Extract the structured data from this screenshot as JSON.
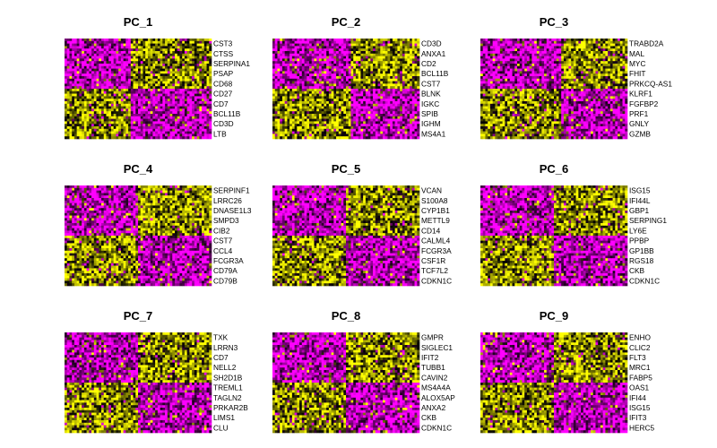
{
  "chart_data": {
    "type": "heatmap",
    "colors": {
      "low": "#ff00ff",
      "mid": "#000000",
      "high": "#ffff00"
    },
    "panels": [
      {
        "title": "PC_1",
        "genes": [
          "CST3",
          "CTSS",
          "SERPINA1",
          "PSAP",
          "CD68",
          "CD27",
          "CD7",
          "BCL11B",
          "CD3D",
          "LTB"
        ],
        "split": 0.45,
        "top": "right-high",
        "bottom": "left-high"
      },
      {
        "title": "PC_2",
        "genes": [
          "CD3D",
          "ANXA1",
          "CD2",
          "BCL11B",
          "CST7",
          "BLNK",
          "IGKC",
          "SPIB",
          "IGHM",
          "MS4A1"
        ],
        "split": 0.53,
        "top": "right-high",
        "bottom": "left-high"
      },
      {
        "title": "PC_3",
        "genes": [
          "TRABD2A",
          "MAL",
          "MYC",
          "FHIT",
          "PRKCQ-AS1",
          "KLRF1",
          "FGFBP2",
          "PRF1",
          "GNLY",
          "GZMB"
        ],
        "split": 0.55,
        "top": "right-high",
        "bottom": "left-high"
      },
      {
        "title": "PC_4",
        "genes": [
          "SERPINF1",
          "LRRC26",
          "DNASE1L3",
          "SMPD3",
          "CIB2",
          "CST7",
          "CCL4",
          "FCGR3A",
          "CD79A",
          "CD79B"
        ],
        "split": 0.5,
        "top": "right-high",
        "bottom": "left-high"
      },
      {
        "title": "PC_5",
        "genes": [
          "VCAN",
          "S100A8",
          "CYP1B1",
          "METTL9",
          "CD14",
          "CALML4",
          "FCGR3A",
          "CSF1R",
          "TCF7L2",
          "CDKN1C"
        ],
        "split": 0.5,
        "top": "right-high",
        "bottom": "left-high"
      },
      {
        "title": "PC_6",
        "genes": [
          "ISG15",
          "IFI44L",
          "GBP1",
          "SERPING1",
          "LY6E",
          "PPBP",
          "GP1BB",
          "RGS18",
          "CKB",
          "CDKN1C"
        ],
        "split": 0.5,
        "top": "right-high",
        "bottom": "left-high"
      },
      {
        "title": "PC_7",
        "genes": [
          "TXK",
          "LRRN3",
          "CD7",
          "NELL2",
          "SH2D1B",
          "TREML1",
          "TAGLN2",
          "PRKAR2B",
          "LIMS1",
          "CLU"
        ],
        "split": 0.5,
        "top": "right-high",
        "bottom": "left-high"
      },
      {
        "title": "PC_8",
        "genes": [
          "GMPR",
          "SIGLEC1",
          "IFIT2",
          "TUBB1",
          "CAVIN2",
          "MS4A4A",
          "ALOX5AP",
          "ANXA2",
          "CKB",
          "CDKN1C"
        ],
        "split": 0.5,
        "top": "right-high",
        "bottom": "left-high"
      },
      {
        "title": "PC_9",
        "genes": [
          "ENHO",
          "CLIC2",
          "FLT3",
          "MRC1",
          "FABP5",
          "OAS1",
          "IFI44",
          "ISG15",
          "IFIT3",
          "HERC5"
        ],
        "split": 0.5,
        "top": "right-high",
        "bottom": "left-high"
      }
    ]
  }
}
